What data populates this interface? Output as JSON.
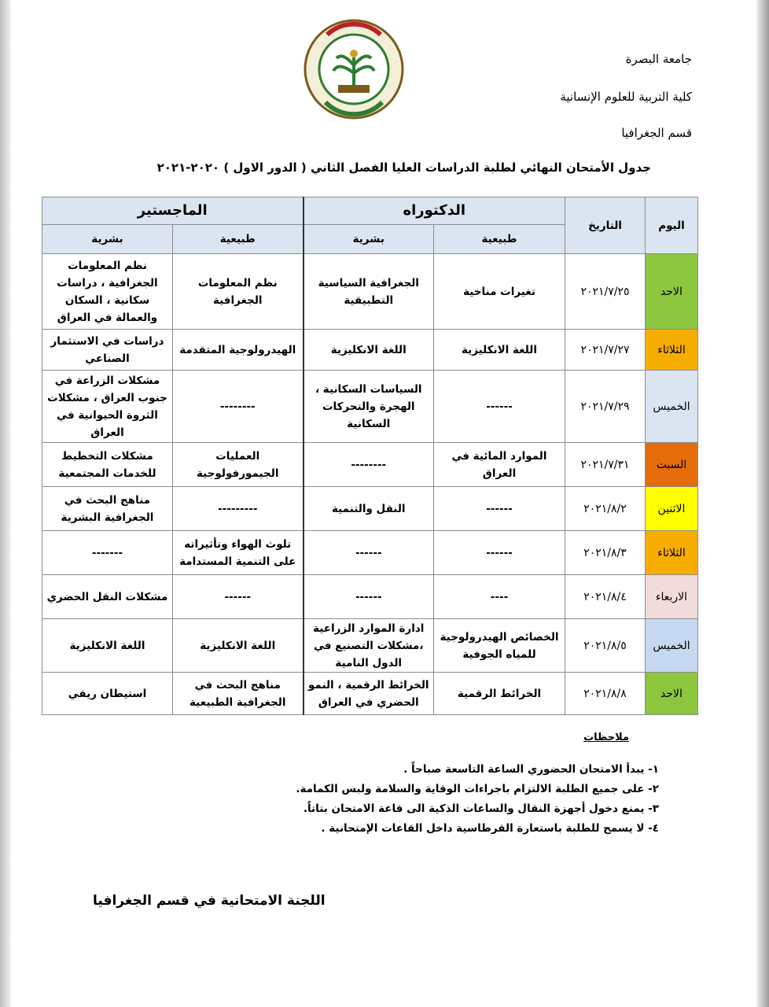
{
  "header": {
    "university": "جامعة البصرة",
    "college": "كلية التربية للعلوم الإنسانية",
    "department": "قسم الجغرافيا"
  },
  "logo": {
    "text": "كلية التربية للعلوم الانسانية - جامعة البصرة - UNIVERSITY OF BASRAH COLLEGE OF EDUCATION FOR HUMAN SCIENCES"
  },
  "title": "جدول الأمتحان النهائي لطلبة الدراسات العليا  الفصل الثاني ( الدور الاول ) ٢٠٢٠-٢٠٢١",
  "table": {
    "headers": {
      "day": "اليوم",
      "date": "التاريخ",
      "phd": "الدكتوراه",
      "masters": "الماجستير",
      "natural": "طبيعية",
      "human": "بشرية"
    },
    "rows": [
      {
        "day": "الاحد",
        "color": "#8cc63e",
        "date": "٢٠٢١/٧/٢٥",
        "phd_natural": "تغيرات مناخية",
        "phd_human": "الجغرافية السياسية التطبيقية",
        "ms_natural": "نظم المعلومات الجغرافية",
        "ms_human": "نظم المعلومات الجغرافية ، دراسات سكانية ، السكان والعمالة في العراق"
      },
      {
        "day": "الثلاثاء",
        "color": "#f7ac00",
        "date": "٢٠٢١/٧/٢٧",
        "phd_natural": "اللغة الانكليزية",
        "phd_human": "اللغة الانكليزية",
        "ms_natural": "الهيدرولوجية المتقدمة",
        "ms_human": "دراسات في الاستثمار الصناعي"
      },
      {
        "day": "الخميس",
        "color": "#dbe5f1",
        "date": "٢٠٢١/٧/٢٩",
        "phd_natural": "------",
        "phd_human": "السياسات السكانية ، الهجرة والتحركات السكانية",
        "ms_natural": "--------",
        "ms_human": "مشكلات الزراعة في جنوب العراق ، مشكلات الثروة الحيوانية في العراق"
      },
      {
        "day": "السبت",
        "color": "#e46c0a",
        "date": "٢٠٢١/٧/٣١",
        "phd_natural": "الموارد المائية في العراق",
        "phd_human": "--------",
        "ms_natural": "العمليات الجيمورفولوجية",
        "ms_human": "مشكلات التخطيط للخدمات المجتمعية"
      },
      {
        "day": "الاثنين",
        "color": "#ffff00",
        "date": "٢٠٢١/٨/٢",
        "phd_natural": "------",
        "phd_human": "النقل والتنمية",
        "ms_natural": "---------",
        "ms_human": "مناهج البحث في الجغرافية البشرية"
      },
      {
        "day": "الثلاثاء",
        "color": "#f7ac00",
        "date": "٢٠٢١/٨/٣",
        "phd_natural": "------",
        "phd_human": "------",
        "ms_natural": "تلوث الهواء وتأثيراته على التنمية المستدامة",
        "ms_human": "-------"
      },
      {
        "day": "الاربعاء",
        "color": "#f2dcdb",
        "date": "٢٠٢١/٨/٤",
        "phd_natural": "----",
        "phd_human": "------",
        "ms_natural": "------",
        "ms_human": "مشكلات النقل الحضري"
      },
      {
        "day": "الخميس",
        "color": "#c6d9f0",
        "date": "٢٠٢١/٨/٥",
        "phd_natural": "الخصائص الهيدرولوجية للمياه الجوفية",
        "phd_human": "ادارة الموارد الزراعية ،مشكلات التصنيع في الدول النامية",
        "ms_natural": "اللغة الانكليزية",
        "ms_human": "اللغة الانكليزية"
      },
      {
        "day": "الاحد",
        "color": "#8cc63e",
        "date": "٢٠٢١/٨/٨",
        "phd_natural": "الخرائط الرقمية",
        "phd_human": "الخرائط الرقمية ، النمو الحضري في العراق",
        "ms_natural": "مناهج البحث في الجغرافية الطبيعية",
        "ms_human": "استيطان ريفي"
      }
    ]
  },
  "notes": {
    "heading": "ملاحظات",
    "items": [
      "١- يبدأ الامتحان الحضوري الساعة التاسعة صباحاً .",
      "٢- على جميع الطلبة الالتزام باجراءات الوقاية والسلامة ولبس الكمامة.",
      "٣- يمنع دخول أجهزة النقال والساعات الذكية الى قاعة الامتحان بتاتاً.",
      "٤- لا يسمح للطلبة باستعارة القرطاسية داخل القاعات الإمتحانية ."
    ]
  },
  "footer": "اللجنة الامتحانية في قسم الجغرافيا"
}
